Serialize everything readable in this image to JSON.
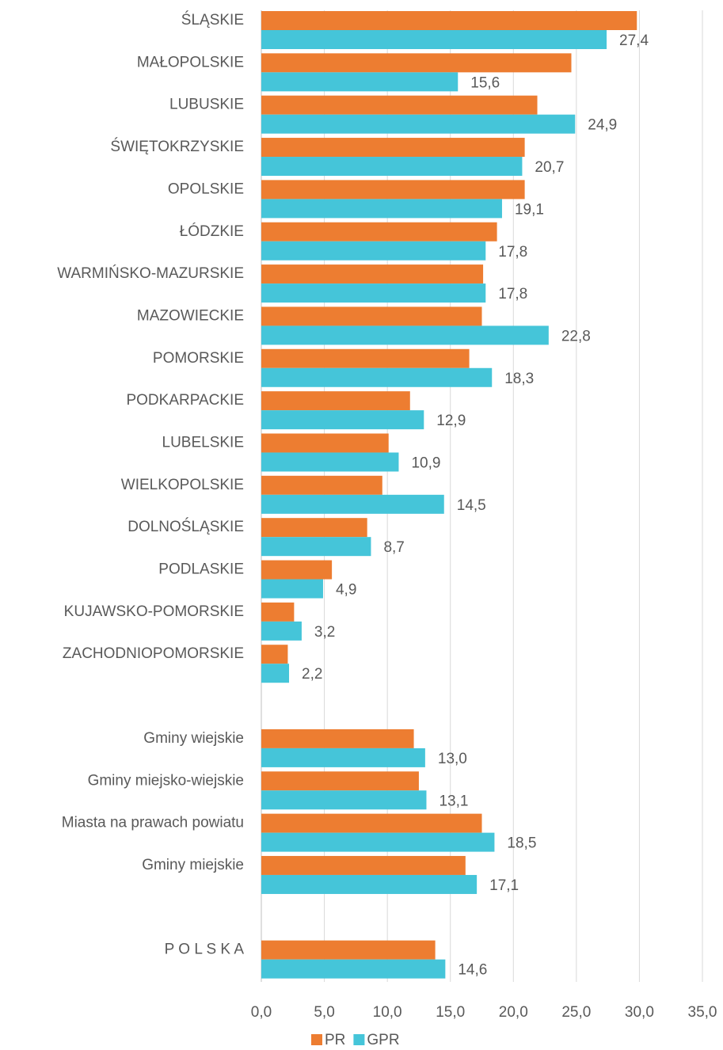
{
  "chart_data": {
    "type": "hbar",
    "categories": [
      "ŚLĄSKIE",
      "MAŁOPOLSKIE",
      "LUBUSKIE",
      "ŚWIĘTOKRZYSKIE",
      "OPOLSKIE",
      "ŁÓDZKIE",
      "WARMIŃSKO-MAZURSKIE",
      "MAZOWIECKIE",
      "POMORSKIE",
      "PODKARPACKIE",
      "LUBELSKIE",
      "WIELKOPOLSKIE",
      "DOLNOŚLĄSKIE",
      "PODLASKIE",
      "KUJAWSKO-POMORSKIE",
      "ZACHODNIOPOMORSKIE",
      null,
      "Gminy wiejskie",
      "Gminy miejsko-wiejskie",
      "Miasta na prawach powiatu",
      "Gminy miejskie",
      null,
      "P O L S K A"
    ],
    "series": [
      {
        "name": "PR",
        "color": "#ed7d31",
        "values": [
          29.8,
          24.6,
          21.9,
          20.9,
          20.9,
          18.7,
          17.6,
          17.5,
          16.5,
          11.8,
          10.1,
          9.6,
          8.4,
          5.6,
          2.6,
          2.1,
          null,
          12.1,
          12.5,
          17.5,
          16.2,
          null,
          13.8
        ]
      },
      {
        "name": "GPR",
        "color": "#45c5d9",
        "values": [
          27.4,
          15.6,
          24.9,
          20.7,
          19.1,
          17.8,
          17.8,
          22.8,
          18.3,
          12.9,
          10.9,
          14.5,
          8.7,
          4.9,
          3.2,
          2.2,
          null,
          13.0,
          13.1,
          18.5,
          17.1,
          null,
          14.6
        ],
        "value_labels": [
          "27,4",
          "15,6",
          "24,9",
          "20,7",
          "19,1",
          "17,8",
          "17,8",
          "22,8",
          "18,3",
          "12,9",
          "10,9",
          "14,5",
          "8,7",
          "4,9",
          "3,2",
          "2,2",
          null,
          "13,0",
          "13,1",
          "18,5",
          "17,1",
          null,
          "14,6"
        ]
      }
    ],
    "xlim": [
      0,
      35
    ],
    "xticks": [
      {
        "value": 0,
        "label": "0,0"
      },
      {
        "value": 5,
        "label": "5,0"
      },
      {
        "value": 10,
        "label": "10,0"
      },
      {
        "value": 15,
        "label": "15,0"
      },
      {
        "value": 20,
        "label": "20,0"
      },
      {
        "value": 25,
        "label": "25,0"
      },
      {
        "value": 30,
        "label": "30,0"
      },
      {
        "value": 35,
        "label": "35,0"
      }
    ],
    "grid": true,
    "legend": "bottom"
  }
}
